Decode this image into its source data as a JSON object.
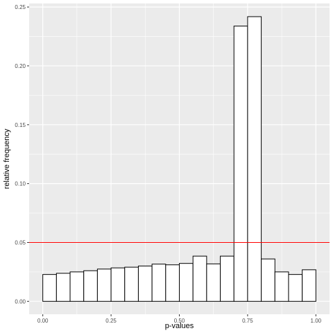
{
  "chart_data": {
    "type": "bar",
    "xlabel": "p-values",
    "ylabel": "relative frequency",
    "xlim": [
      -0.05,
      1.05
    ],
    "ylim": [
      -0.011,
      0.253
    ],
    "x_ticks": [
      0,
      0.25,
      0.5,
      0.75,
      1
    ],
    "x_tick_labels": [
      "0.00",
      "0.25",
      "0.50",
      "0.75",
      "1.00"
    ],
    "y_ticks": [
      0,
      0.05,
      0.1,
      0.15,
      0.2,
      0.25
    ],
    "y_tick_labels": [
      "0.00",
      "0.05",
      "0.10",
      "0.15",
      "0.20",
      "0.25"
    ],
    "bin_width": 0.05,
    "bin_starts": [
      0.0,
      0.05,
      0.1,
      0.15,
      0.2,
      0.25,
      0.3,
      0.35,
      0.4,
      0.45,
      0.5,
      0.55,
      0.6,
      0.65,
      0.7,
      0.75,
      0.8,
      0.85,
      0.9,
      0.95
    ],
    "values": [
      0.0228,
      0.0238,
      0.025,
      0.026,
      0.0274,
      0.0284,
      0.029,
      0.03,
      0.0316,
      0.031,
      0.0322,
      0.0384,
      0.0318,
      0.0384,
      0.2338,
      0.2418,
      0.036,
      0.025,
      0.0228,
      0.0268
    ],
    "reference_line": {
      "y": 0.05,
      "color": "#ff0000"
    },
    "grid": true,
    "panel_background": "#ebebeb",
    "bar_fill": "#ffffff",
    "bar_stroke": "#000000"
  }
}
